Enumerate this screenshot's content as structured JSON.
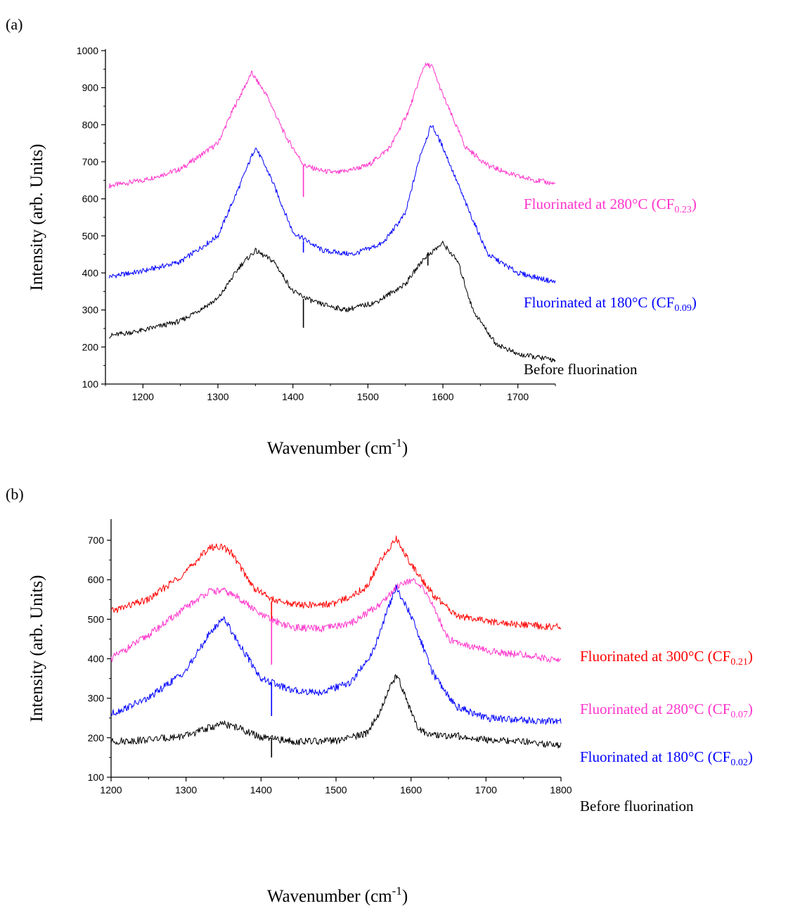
{
  "chart_data": [
    {
      "panel_label": "(a)",
      "type": "line",
      "xlabel": "Wavenumber (cm",
      "xlabel_sup": "-1",
      "xlabel_end": ")",
      "ylabel": "Intensity (arb. Units)",
      "xlim": [
        1150,
        1750
      ],
      "ylim": [
        100,
        1000
      ],
      "xticks": [
        1200,
        1300,
        1400,
        1500,
        1600,
        1700
      ],
      "yticks": [
        100,
        200,
        300,
        400,
        500,
        600,
        700,
        800,
        900,
        1000
      ],
      "legend_placement": "right of each curve",
      "series": [
        {
          "label": "Fluorinated at 280°C (CF",
          "label_sub": "0.23",
          "label_end": ")",
          "color": "#ff33cc",
          "x": [
            1155,
            1200,
            1250,
            1300,
            1320,
            1345,
            1365,
            1390,
            1415,
            1440,
            1460,
            1500,
            1530,
            1555,
            1575,
            1585,
            1600,
            1630,
            1660,
            1700,
            1750
          ],
          "y": [
            635,
            650,
            680,
            750,
            840,
            940,
            880,
            770,
            690,
            675,
            670,
            690,
            740,
            840,
            960,
            960,
            880,
            740,
            690,
            660,
            640
          ]
        },
        {
          "label": "Fluorinated at 180°C (CF",
          "label_sub": "0.09",
          "label_end": ")",
          "color": "#0000ff",
          "x": [
            1155,
            1200,
            1250,
            1300,
            1330,
            1350,
            1370,
            1400,
            1440,
            1480,
            1520,
            1550,
            1570,
            1585,
            1600,
            1630,
            1660,
            1700,
            1750
          ],
          "y": [
            390,
            405,
            430,
            500,
            640,
            740,
            660,
            510,
            460,
            450,
            480,
            560,
            720,
            800,
            740,
            590,
            450,
            400,
            375
          ]
        },
        {
          "label": "Before fluorination",
          "label_sub": "",
          "label_end": "",
          "color": "#000000",
          "x": [
            1155,
            1200,
            1250,
            1300,
            1330,
            1350,
            1375,
            1400,
            1430,
            1470,
            1510,
            1550,
            1575,
            1600,
            1620,
            1640,
            1670,
            1700,
            1750
          ],
          "y": [
            230,
            245,
            270,
            330,
            420,
            460,
            430,
            350,
            320,
            300,
            320,
            370,
            440,
            480,
            430,
            300,
            210,
            180,
            165
          ]
        }
      ],
      "spikes": [
        {
          "color": "#ff33cc",
          "x": 1414,
          "from": 690,
          "to": 605
        },
        {
          "color": "#0000ff",
          "x": 1414,
          "from": 485,
          "to": 455
        },
        {
          "color": "#000000",
          "x": 1414,
          "from": 330,
          "to": 252
        },
        {
          "color": "#000000",
          "x": 1580,
          "from": 455,
          "to": 420
        }
      ]
    },
    {
      "panel_label": "(b)",
      "type": "line",
      "xlabel": "Wavenumber (cm",
      "xlabel_sup": "-1",
      "xlabel_end": ")",
      "ylabel": "Intensity (arb. Units)",
      "xlim": [
        1200,
        1800
      ],
      "ylim": [
        100,
        750
      ],
      "xticks": [
        1200,
        1300,
        1400,
        1500,
        1600,
        1700,
        1800
      ],
      "yticks": [
        100,
        200,
        300,
        400,
        500,
        600,
        700
      ],
      "legend_placement": "right of each curve",
      "series": [
        {
          "label": "Fluorinated at 300°C (CF",
          "label_sub": "0.21",
          "label_end": ")",
          "color": "#ff0000",
          "x": [
            1200,
            1250,
            1300,
            1330,
            1345,
            1360,
            1390,
            1420,
            1460,
            1500,
            1540,
            1560,
            1580,
            1600,
            1630,
            1660,
            1700,
            1750,
            1800
          ],
          "y": [
            520,
            550,
            620,
            680,
            685,
            670,
            580,
            545,
            535,
            540,
            580,
            650,
            705,
            640,
            560,
            510,
            495,
            485,
            480
          ]
        },
        {
          "label": "Fluorinated at 280°C (CF",
          "label_sub": "0.07",
          "label_end": ")",
          "color": "#ff33cc",
          "x": [
            1200,
            1250,
            1300,
            1330,
            1350,
            1370,
            1400,
            1440,
            1480,
            1520,
            1560,
            1585,
            1600,
            1620,
            1650,
            1700,
            1750,
            1800
          ],
          "y": [
            400,
            460,
            530,
            570,
            572,
            555,
            510,
            480,
            475,
            490,
            540,
            590,
            600,
            570,
            450,
            420,
            410,
            395
          ]
        },
        {
          "label": "Fluorinated at 180°C (CF",
          "label_sub": "0.02",
          "label_end": ")",
          "color": "#0000ff",
          "x": [
            1200,
            1250,
            1300,
            1330,
            1350,
            1370,
            1400,
            1440,
            1480,
            1520,
            1550,
            1570,
            1580,
            1600,
            1630,
            1660,
            1700,
            1750,
            1800
          ],
          "y": [
            260,
            300,
            370,
            460,
            505,
            440,
            350,
            320,
            315,
            340,
            420,
            530,
            580,
            510,
            360,
            280,
            250,
            245,
            240
          ]
        },
        {
          "label": "Before fluorination",
          "label_sub": "",
          "label_end": "",
          "color": "#000000",
          "x": [
            1200,
            1250,
            1300,
            1330,
            1350,
            1370,
            1400,
            1450,
            1500,
            1540,
            1560,
            1572,
            1582,
            1595,
            1610,
            1630,
            1660,
            1700,
            1750,
            1800
          ],
          "y": [
            190,
            195,
            205,
            225,
            235,
            225,
            200,
            190,
            192,
            210,
            270,
            330,
            360,
            290,
            220,
            205,
            205,
            195,
            190,
            180
          ]
        }
      ],
      "spikes": [
        {
          "color": "#ff0000",
          "x": 1414,
          "from": 545,
          "to": 480
        },
        {
          "color": "#ff33cc",
          "x": 1414,
          "from": 500,
          "to": 385
        },
        {
          "color": "#0000ff",
          "x": 1414,
          "from": 340,
          "to": 255
        },
        {
          "color": "#000000",
          "x": 1414,
          "from": 200,
          "to": 150
        }
      ]
    }
  ]
}
